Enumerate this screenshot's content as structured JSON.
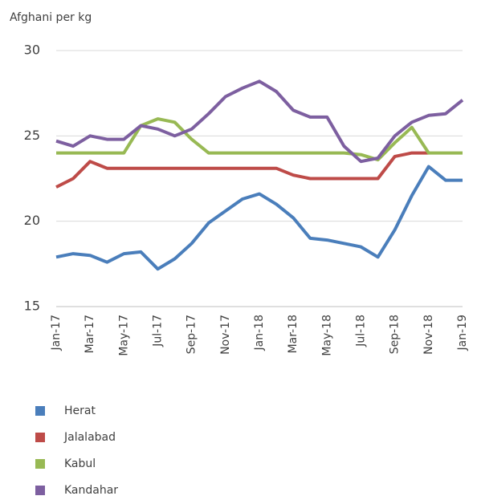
{
  "chart_data": {
    "type": "line",
    "y_axis_label": "Afghani per kg",
    "categories": [
      "Jan-17",
      null,
      "Mar-17",
      null,
      "May-17",
      null,
      "Jul-17",
      null,
      "Sep-17",
      null,
      "Nov-17",
      null,
      "Jan-18",
      null,
      "Mar-18",
      null,
      "May-18",
      null,
      "Jul-18",
      null,
      "Sep-18",
      null,
      "Nov-18",
      null,
      "Jan-19"
    ],
    "ylim": [
      15,
      30
    ],
    "yticks": [
      15,
      20,
      25,
      30
    ],
    "grid": true,
    "legend": "bottom",
    "series": [
      {
        "name": "Herat",
        "color": "#4a7ebb",
        "values": [
          17.9,
          18.1,
          18.0,
          17.6,
          18.1,
          18.2,
          17.2,
          17.8,
          18.7,
          19.9,
          20.6,
          21.3,
          21.6,
          21.0,
          20.2,
          19.0,
          18.9,
          18.7,
          18.5,
          17.9,
          19.5,
          21.5,
          23.2,
          22.4,
          22.4
        ]
      },
      {
        "name": "Jalalabad",
        "color": "#be4b48",
        "values": [
          22.0,
          22.5,
          23.5,
          23.1,
          23.1,
          23.1,
          23.1,
          23.1,
          23.1,
          23.1,
          23.1,
          23.1,
          23.1,
          23.1,
          22.7,
          22.5,
          22.5,
          22.5,
          22.5,
          22.5,
          23.8,
          24.0,
          24.0,
          null,
          null
        ]
      },
      {
        "name": "Kabul",
        "color": "#98b954",
        "values": [
          24.0,
          24.0,
          24.0,
          24.0,
          24.0,
          25.6,
          26.0,
          25.8,
          24.8,
          24.0,
          24.0,
          24.0,
          24.0,
          24.0,
          24.0,
          24.0,
          24.0,
          24.0,
          23.9,
          23.6,
          24.6,
          25.5,
          24.0,
          24.0,
          24.0
        ]
      },
      {
        "name": "Kandahar",
        "color": "#7d5fa0",
        "values": [
          24.7,
          24.4,
          25.0,
          24.8,
          24.8,
          25.6,
          25.4,
          25.0,
          25.4,
          26.3,
          27.3,
          27.8,
          28.2,
          27.6,
          26.5,
          26.1,
          26.1,
          24.4,
          23.5,
          23.7,
          25.0,
          25.8,
          26.2,
          26.3,
          27.1
        ]
      }
    ]
  }
}
